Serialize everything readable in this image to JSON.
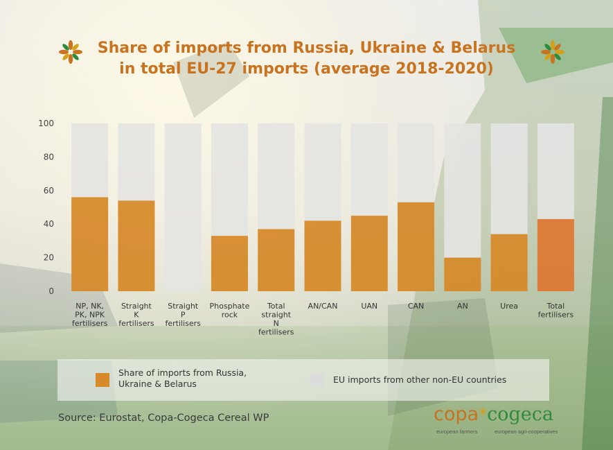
{
  "title": {
    "line1": "Share of imports from Russia, Ukraine & Belarus",
    "line2": "in total EU-27 imports (average 2018-2020)"
  },
  "chart_data": {
    "type": "bar",
    "stacked": true,
    "ylim": [
      0,
      100
    ],
    "yticks": [
      0,
      20,
      40,
      60,
      80,
      100
    ],
    "grid": false,
    "legend_placement": "bottom",
    "categories": [
      [
        "NP, NK,",
        "PK, NPK",
        "fertilisers"
      ],
      [
        "Straight",
        "K",
        "fertilisers"
      ],
      [
        "Straight",
        "P",
        "fertilisers"
      ],
      [
        "Phosphate",
        "rock"
      ],
      [
        "Total",
        "straight",
        "N",
        "fertilisers"
      ],
      [
        "AN/CAN"
      ],
      [
        "UAN"
      ],
      [
        "CAN"
      ],
      [
        "AN"
      ],
      [
        "Urea"
      ],
      [
        "Total",
        "fertilisers"
      ]
    ],
    "series": [
      {
        "name": "Share of imports from Russia, Ukraine & Belarus",
        "values": [
          56,
          54,
          0,
          33,
          37,
          42,
          45,
          53,
          20,
          34,
          43
        ],
        "color": "#d68a2b",
        "highlight_color": "#dd7a35",
        "highlight_index": 10
      },
      {
        "name": "EU imports from other non-EU countries",
        "values": [
          44,
          46,
          100,
          67,
          63,
          58,
          55,
          47,
          80,
          66,
          57
        ],
        "color": "#e4e4e2"
      }
    ]
  },
  "legend": {
    "item1_line1": "Share of imports from Russia,",
    "item1_line2": "Ukraine & Belarus",
    "item2": "EU imports from other non-EU countries",
    "item1_color": "#d68a2b",
    "item2_color": "#dcdcda"
  },
  "source": "Source: Eurostat, Copa-Cogeca Cereal WP",
  "logo": {
    "copa": "copa",
    "star": "*",
    "cogeca": "cogeca",
    "sub1": "european farmers",
    "sub2": "european agri-cooperatives"
  }
}
